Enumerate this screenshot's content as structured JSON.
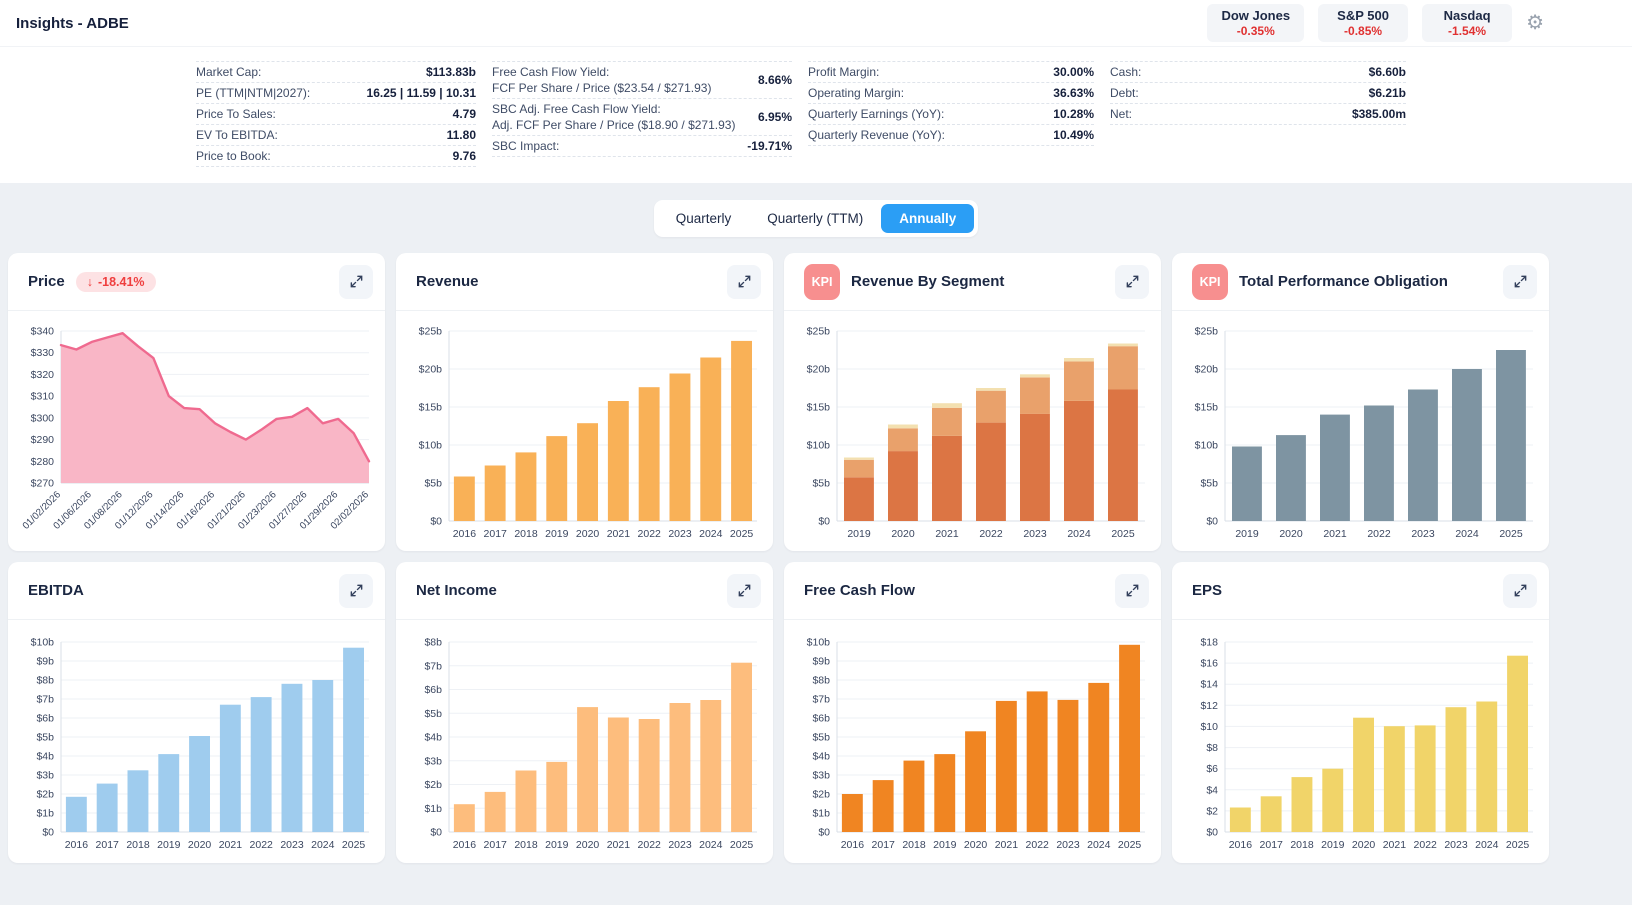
{
  "header": {
    "title": "Insights - ADBE",
    "indices": [
      {
        "name": "Dow Jones",
        "change": "-0.35%"
      },
      {
        "name": "S&P 500",
        "change": "-0.85%"
      },
      {
        "name": "Nasdaq",
        "change": "-1.54%"
      }
    ]
  },
  "stats": {
    "col1": [
      {
        "label": "Market Cap:",
        "value": "$113.83b"
      },
      {
        "label": "PE (TTM|NTM|2027):",
        "value": "16.25 | 11.59 | 10.31"
      },
      {
        "label": "Price To Sales:",
        "value": "4.79"
      },
      {
        "label": "EV To EBITDA:",
        "value": "11.80"
      },
      {
        "label": "Price to Book:",
        "value": "9.76"
      }
    ],
    "col2": [
      {
        "label": "Free Cash Flow Yield:",
        "sublabel": "FCF Per Share / Price ($23.54 / $271.93)",
        "value": "8.66%"
      },
      {
        "label": "SBC Adj. Free Cash Flow Yield:",
        "sublabel": "Adj. FCF Per Share / Price ($18.90 / $271.93)",
        "value": "6.95%"
      },
      {
        "label": "SBC Impact:",
        "sublabel": "",
        "value": "-19.71%"
      }
    ],
    "col3": [
      {
        "label": "Profit Margin:",
        "value": "30.00%"
      },
      {
        "label": "Operating Margin:",
        "value": "36.63%"
      },
      {
        "label": "Quarterly Earnings (YoY):",
        "value": "10.28%"
      },
      {
        "label": "Quarterly Revenue (YoY):",
        "value": "10.49%"
      }
    ],
    "col4": [
      {
        "label": "Cash:",
        "value": "$6.60b"
      },
      {
        "label": "Debt:",
        "value": "$6.21b"
      },
      {
        "label": "Net:",
        "value": "$385.00m"
      }
    ]
  },
  "period_toggle": {
    "options": [
      "Quarterly",
      "Quarterly (TTM)",
      "Annually"
    ],
    "selected": "Annually"
  },
  "colors": {
    "accent_blue": "#2b9ef5",
    "negative_red": "#e03131",
    "kpi_badge": "#f78f8f"
  },
  "chart_data": [
    {
      "id": "price",
      "title": "Price",
      "type": "area",
      "change_arrow": "↓",
      "change": "-18.41%",
      "x_labels": [
        "01/02/2026",
        "01/06/2026",
        "01/08/2026",
        "01/12/2026",
        "01/14/2026",
        "01/16/2026",
        "01/21/2026",
        "01/23/2026",
        "01/27/2026",
        "01/29/2026",
        "02/02/2026"
      ],
      "label_every": 2,
      "rotate_x": true,
      "values": [
        333.5,
        331.5,
        335,
        337,
        339,
        333,
        327.5,
        310,
        304.5,
        304,
        297.5,
        293.5,
        290,
        294.5,
        299.5,
        300.5,
        304.5,
        297.5,
        299.5,
        293,
        280
      ],
      "ylim": [
        270,
        340
      ],
      "ytick_values": [
        270,
        280,
        290,
        300,
        310,
        320,
        330,
        340
      ],
      "ytick_labels": [
        "$270",
        "$280",
        "$290",
        "$300",
        "$310",
        "$320",
        "$330",
        "$340"
      ],
      "line_color": "#ef6a8f",
      "fill_color": "#f9b6c6"
    },
    {
      "id": "revenue",
      "title": "Revenue",
      "type": "bar",
      "categories": [
        "2016",
        "2017",
        "2018",
        "2019",
        "2020",
        "2021",
        "2022",
        "2023",
        "2024",
        "2025"
      ],
      "values": [
        5.85,
        7.3,
        9.03,
        11.17,
        12.87,
        15.79,
        17.61,
        19.41,
        21.51,
        23.7
      ],
      "ylim": [
        0,
        25
      ],
      "ytick_values": [
        0,
        5,
        10,
        15,
        20,
        25
      ],
      "ytick_labels": [
        "$0",
        "$5b",
        "$10b",
        "$15b",
        "$20b",
        "$25b"
      ],
      "color": "#f9b157"
    },
    {
      "id": "revenue-by-segment",
      "title": "Revenue By Segment",
      "kpi_label": "KPI",
      "type": "bar",
      "stacked": true,
      "categories": [
        "2019",
        "2020",
        "2021",
        "2022",
        "2023",
        "2024",
        "2025"
      ],
      "series": [
        {
          "name": "segment-1",
          "color": "#dc7544",
          "values": [
            5.75,
            9.2,
            11.2,
            12.95,
            14.1,
            15.8,
            17.3
          ]
        },
        {
          "name": "segment-2",
          "color": "#e9a16b",
          "values": [
            2.3,
            3.0,
            3.7,
            4.2,
            4.8,
            5.2,
            5.7
          ]
        },
        {
          "name": "segment-3",
          "color": "#f3e0b0",
          "values": [
            0.3,
            0.5,
            0.6,
            0.35,
            0.4,
            0.45,
            0.35
          ]
        }
      ],
      "ylim": [
        0,
        25
      ],
      "ytick_values": [
        0,
        5,
        10,
        15,
        20,
        25
      ],
      "ytick_labels": [
        "$0",
        "$5b",
        "$10b",
        "$15b",
        "$20b",
        "$25b"
      ]
    },
    {
      "id": "total-performance-obligation",
      "title": "Total Performance Obligation",
      "kpi_label": "KPI",
      "type": "bar",
      "categories": [
        "2019",
        "2020",
        "2021",
        "2022",
        "2023",
        "2024",
        "2025"
      ],
      "values": [
        9.8,
        11.3,
        14.0,
        15.2,
        17.3,
        20.0,
        22.5
      ],
      "ylim": [
        0,
        25
      ],
      "ytick_values": [
        0,
        5,
        10,
        15,
        20,
        25
      ],
      "ytick_labels": [
        "$0",
        "$5b",
        "$10b",
        "$15b",
        "$20b",
        "$25b"
      ],
      "color": "#7e94a2"
    },
    {
      "id": "ebitda",
      "title": "EBITDA",
      "type": "bar",
      "categories": [
        "2016",
        "2017",
        "2018",
        "2019",
        "2020",
        "2021",
        "2022",
        "2023",
        "2024",
        "2025"
      ],
      "values": [
        1.85,
        2.55,
        3.25,
        4.1,
        5.05,
        6.7,
        7.1,
        7.8,
        8.0,
        9.7
      ],
      "ylim": [
        0,
        10
      ],
      "ytick_values": [
        0,
        1,
        2,
        3,
        4,
        5,
        6,
        7,
        8,
        9,
        10
      ],
      "ytick_labels": [
        "$0",
        "$1b",
        "$2b",
        "$3b",
        "$4b",
        "$5b",
        "$6b",
        "$7b",
        "$8b",
        "$9b",
        "$10b"
      ],
      "color": "#9fccee"
    },
    {
      "id": "net-income",
      "title": "Net Income",
      "type": "bar",
      "categories": [
        "2016",
        "2017",
        "2018",
        "2019",
        "2020",
        "2021",
        "2022",
        "2023",
        "2024",
        "2025"
      ],
      "values": [
        1.17,
        1.69,
        2.59,
        2.95,
        5.26,
        4.82,
        4.76,
        5.43,
        5.56,
        7.13
      ],
      "ylim": [
        0,
        8
      ],
      "ytick_values": [
        0,
        1,
        2,
        3,
        4,
        5,
        6,
        7,
        8
      ],
      "ytick_labels": [
        "$0",
        "$1b",
        "$2b",
        "$3b",
        "$4b",
        "$5b",
        "$6b",
        "$7b",
        "$8b"
      ],
      "color": "#fdbd7d"
    },
    {
      "id": "free-cash-flow",
      "title": "Free Cash Flow",
      "type": "bar",
      "categories": [
        "2016",
        "2017",
        "2018",
        "2019",
        "2020",
        "2021",
        "2022",
        "2023",
        "2024",
        "2025"
      ],
      "values": [
        2.0,
        2.73,
        3.76,
        4.1,
        5.3,
        6.9,
        7.4,
        6.95,
        7.85,
        9.85
      ],
      "ylim": [
        0,
        10
      ],
      "ytick_values": [
        0,
        1,
        2,
        3,
        4,
        5,
        6,
        7,
        8,
        9,
        10
      ],
      "ytick_labels": [
        "$0",
        "$1b",
        "$2b",
        "$3b",
        "$4b",
        "$5b",
        "$6b",
        "$7b",
        "$8b",
        "$9b",
        "$10b"
      ],
      "color": "#f08522"
    },
    {
      "id": "eps",
      "title": "EPS",
      "type": "bar",
      "categories": [
        "2016",
        "2017",
        "2018",
        "2019",
        "2020",
        "2021",
        "2022",
        "2023",
        "2024",
        "2025"
      ],
      "values": [
        2.32,
        3.38,
        5.2,
        6.0,
        10.83,
        10.02,
        10.1,
        11.82,
        12.36,
        16.7
      ],
      "ylim": [
        0,
        18
      ],
      "ytick_values": [
        0,
        2,
        4,
        6,
        8,
        10,
        12,
        14,
        16,
        18
      ],
      "ytick_labels": [
        "$0",
        "$2",
        "$4",
        "$6",
        "$8",
        "$10",
        "$12",
        "$14",
        "$16",
        "$18"
      ],
      "color": "#f1d469"
    }
  ]
}
